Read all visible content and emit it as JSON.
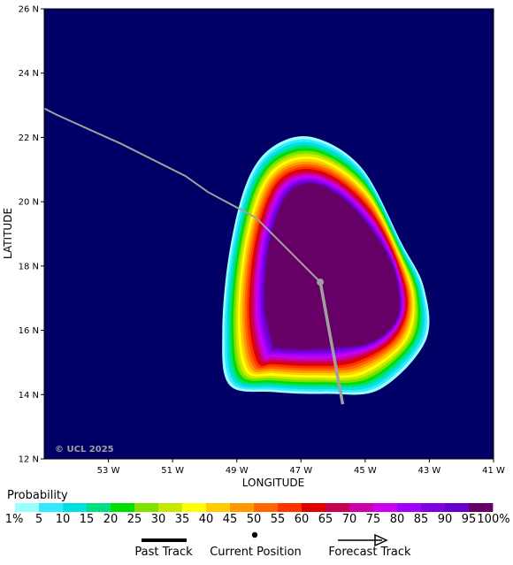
{
  "map": {
    "background_color": "#000066",
    "lon_range_w": [
      55,
      41
    ],
    "lat_range_n": [
      12,
      26
    ],
    "x_axis_title": "LONGITUDE",
    "y_axis_title": "LATITUDE",
    "lon_ticks": [
      "53 W",
      "51 W",
      "49 W",
      "47 W",
      "45 W",
      "43 W",
      "41 W"
    ],
    "lat_ticks": [
      "26 N",
      "24 N",
      "22 N",
      "20 N",
      "18 N",
      "16 N",
      "14 N",
      "12 N"
    ],
    "copyright": "© UCL 2025"
  },
  "track": {
    "past_color": "#a0a0a0",
    "forecast_color": "#a0a0a0",
    "past": [
      {
        "lon_w": 55.0,
        "lat_n": 22.9
      },
      {
        "lon_w": 54.6,
        "lat_n": 22.7
      },
      {
        "lon_w": 52.6,
        "lat_n": 21.8
      },
      {
        "lon_w": 50.6,
        "lat_n": 20.8
      },
      {
        "lon_w": 49.9,
        "lat_n": 20.3
      },
      {
        "lon_w": 48.4,
        "lat_n": 19.5
      },
      {
        "lon_w": 46.4,
        "lat_n": 17.5
      }
    ],
    "current": {
      "lon_w": 46.4,
      "lat_n": 17.5
    },
    "forecast": [
      {
        "lon_w": 46.4,
        "lat_n": 17.5
      },
      {
        "lon_w": 45.7,
        "lat_n": 13.7
      }
    ]
  },
  "probability": {
    "legend_title": "Probability",
    "labels": [
      "1%",
      "5",
      "10",
      "15",
      "20",
      "25",
      "30",
      "35",
      "40",
      "45",
      "50",
      "55",
      "60",
      "65",
      "70",
      "75",
      "80",
      "85",
      "90",
      "95",
      "100%"
    ],
    "colors": [
      "#99ffff",
      "#33e8ff",
      "#00e0e0",
      "#00e080",
      "#00e000",
      "#80e000",
      "#c8e800",
      "#ffff00",
      "#ffcc00",
      "#ff9900",
      "#ff6600",
      "#ff3300",
      "#e00000",
      "#c80050",
      "#cc00aa",
      "#cc00ee",
      "#a000ff",
      "#8000e0",
      "#6600cc",
      "#660066"
    ],
    "center": {
      "lon_w": 46.2,
      "lat_n": 17.6
    }
  },
  "bottom_legend": {
    "past_label": "Past Track",
    "current_label": "Current Position",
    "forecast_label": "Forecast Track"
  }
}
